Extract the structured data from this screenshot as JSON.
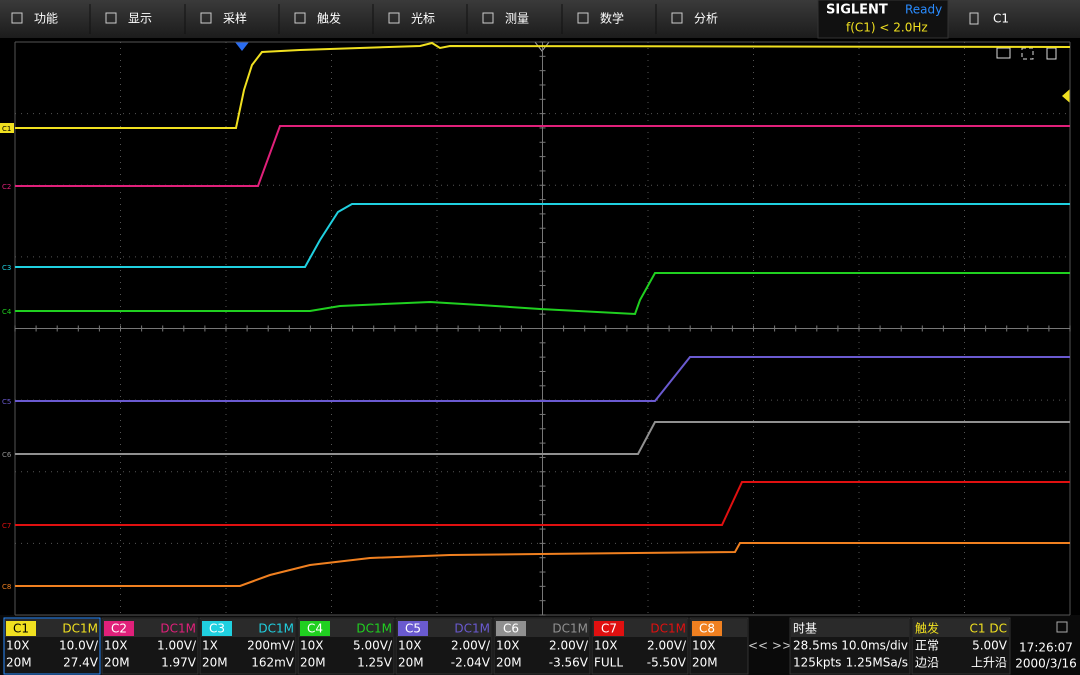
{
  "menu": [
    "功能",
    "显示",
    "采样",
    "触发",
    "光标",
    "测量",
    "数学",
    "分析"
  ],
  "brand": "SIGLENT",
  "status": "Ready",
  "trigger_readout": "f(C1) < 2.0Hz",
  "menu_channel": "C1",
  "channels": [
    {
      "name": "C1",
      "color": "#f0e020",
      "coupling": "DC1M",
      "probe": "10X",
      "scale": "10.0V/",
      "bandwidth": "20M",
      "offset": "27.4V"
    },
    {
      "name": "C2",
      "color": "#e0207a",
      "coupling": "DC1M",
      "probe": "10X",
      "scale": "1.00V/",
      "bandwidth": "20M",
      "offset": "1.97V"
    },
    {
      "name": "C3",
      "color": "#20d0e0",
      "coupling": "DC1M",
      "probe": "1X",
      "scale": "200mV/",
      "bandwidth": "20M",
      "offset": "162mV"
    },
    {
      "name": "C4",
      "color": "#20d020",
      "coupling": "DC1M",
      "probe": "10X",
      "scale": "5.00V/",
      "bandwidth": "20M",
      "offset": "1.25V"
    },
    {
      "name": "C5",
      "color": "#6a5ad0",
      "coupling": "DC1M",
      "probe": "10X",
      "scale": "2.00V/",
      "bandwidth": "20M",
      "offset": "-2.04V"
    },
    {
      "name": "C6",
      "color": "#909090",
      "coupling": "DC1M",
      "probe": "10X",
      "scale": "2.00V/",
      "bandwidth": "20M",
      "offset": "-3.56V"
    },
    {
      "name": "C7",
      "color": "#e01010",
      "coupling": "DC1M",
      "probe": "10X",
      "scale": "2.00V/",
      "bandwidth": "FULL",
      "offset": "-5.50V"
    },
    {
      "name": "C8",
      "color": "#f08020",
      "probe": "10X",
      "bandwidth": "20M"
    }
  ],
  "nav": "<< >>",
  "timebase": {
    "title": "时基",
    "delay": "28.5ms",
    "scale": "10.0ms/div",
    "memory": "125kpts",
    "sample_rate": "1.25MSa/s"
  },
  "trigger": {
    "title": "触发",
    "source": "C1 DC",
    "mode": "正常",
    "level": "5.00V",
    "type": "边沿",
    "slope": "上升沿"
  },
  "clock": {
    "time": "17:26:07",
    "date": "2000/3/16"
  }
}
